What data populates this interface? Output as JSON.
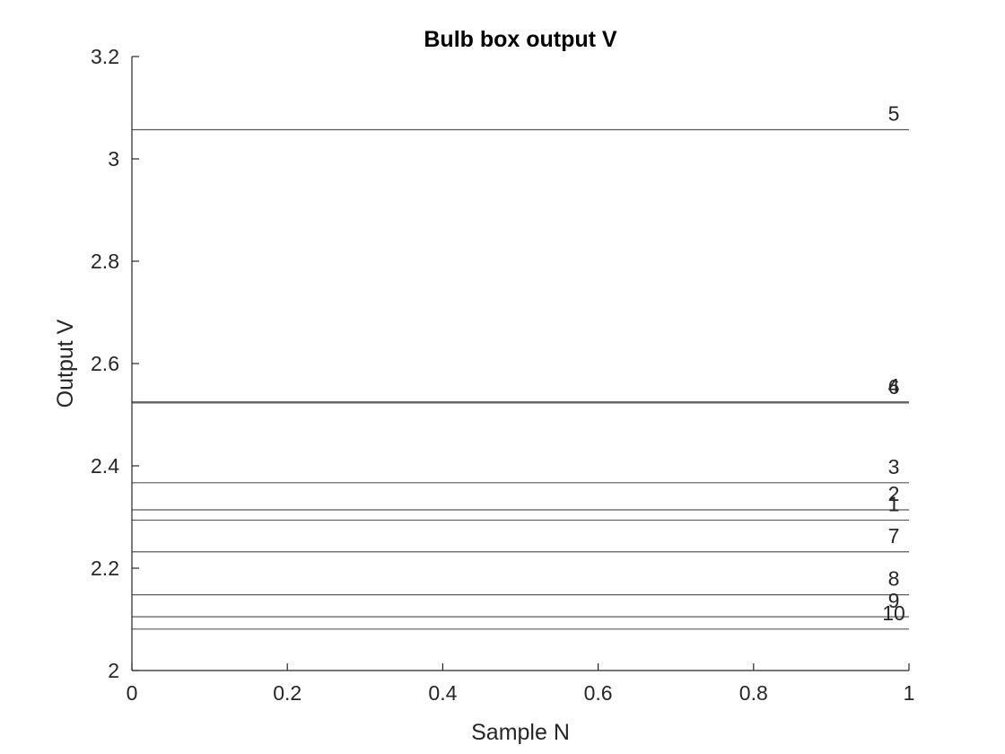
{
  "chart_data": {
    "type": "line",
    "title": "Bulb box output V",
    "xlabel": "Sample N",
    "ylabel": "Output V",
    "xlim": [
      0,
      1
    ],
    "ylim": [
      2,
      3.2
    ],
    "x_ticks": [
      0,
      0.2,
      0.4,
      0.6,
      0.8,
      1
    ],
    "x_tick_labels": [
      "0",
      "0.2",
      "0.4",
      "0.6",
      "0.8",
      "1"
    ],
    "y_ticks": [
      2,
      2.2,
      2.4,
      2.6,
      2.8,
      3,
      3.2
    ],
    "y_tick_labels": [
      "2",
      "2.2",
      "2.4",
      "2.6",
      "2.8",
      "3",
      "3.2"
    ],
    "grid": false,
    "line_color": "#5a5a5a",
    "series": [
      {
        "label": "1",
        "value": 2.294
      },
      {
        "label": "2",
        "value": 2.314
      },
      {
        "label": "3",
        "value": 2.367
      },
      {
        "label": "4",
        "value": 2.525
      },
      {
        "label": "5",
        "value": 3.057
      },
      {
        "label": "6",
        "value": 2.523
      },
      {
        "label": "7",
        "value": 2.232
      },
      {
        "label": "8",
        "value": 2.148
      },
      {
        "label": "9",
        "value": 2.105
      },
      {
        "label": "10",
        "value": 2.081
      }
    ]
  }
}
